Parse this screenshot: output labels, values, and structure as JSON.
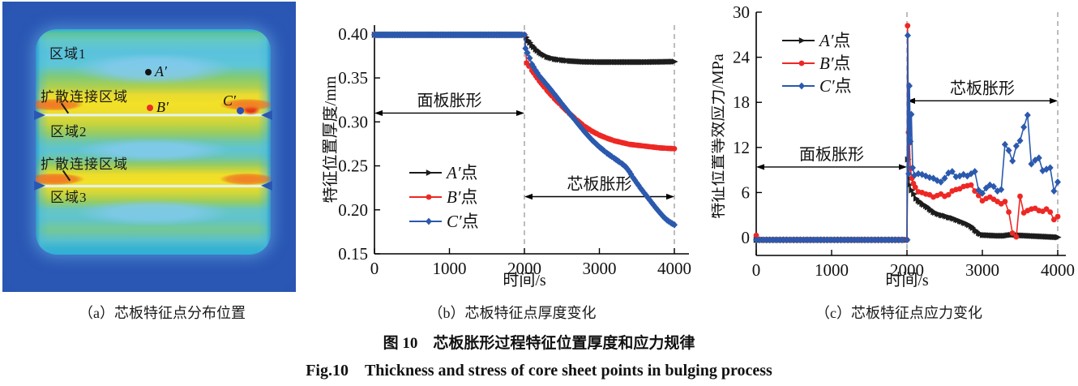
{
  "figure": {
    "caption_cn": "图 10　芯板胀形过程特征位置厚度和应力规律",
    "caption_en": "Fig.10　Thickness and stress of core sheet points in bulging process",
    "colors": {
      "black": "#1c1c1c",
      "red": "#ed2824",
      "blue": "#2b59ae",
      "dash": "#999999"
    }
  },
  "panel_a": {
    "caption": "（a）芯板特征点分布位置",
    "labels": {
      "region1": "区域1",
      "diffusion1": "扩散连接区域",
      "region2": "区域2",
      "diffusion2": "扩散连接区域",
      "region3": "区域3",
      "point_a": "A′",
      "point_b": "B′",
      "point_c": "C′"
    },
    "point_colors": {
      "a": "#141414",
      "b": "#e83028",
      "c": "#2b50b0"
    }
  },
  "chart_data": [
    {
      "name": "thickness-chart",
      "type": "line",
      "title": "（b）芯板特征点厚度变化",
      "xlabel": "时间/s",
      "ylabel": "特征位置厚度/mm",
      "xlim": [
        0,
        4200
      ],
      "ylim": [
        0.15,
        0.41
      ],
      "xticks": [
        0,
        1000,
        2000,
        3000,
        4000
      ],
      "yticks": [
        0.15,
        0.2,
        0.25,
        0.3,
        0.35,
        0.4
      ],
      "ytick_decimals": 2,
      "grid": false,
      "legend_position": "inside-lower-left",
      "dashed_x": [
        2000,
        4000
      ],
      "annotations": [
        {
          "text": "面板胀形",
          "x1": 0,
          "x2": 2000,
          "y": 0.31
        },
        {
          "text": "芯板胀形",
          "x1": 2000,
          "x2": 4000,
          "y": 0.215
        }
      ],
      "series": [
        {
          "name": "A′点",
          "color": "#1c1c1c",
          "marker": "triangle",
          "points": [
            [
              0,
              0.399
            ],
            [
              2000,
              0.399
            ],
            [
              2050,
              0.3925
            ],
            [
              2100,
              0.387
            ],
            [
              2150,
              0.3825
            ],
            [
              2200,
              0.379
            ],
            [
              2300,
              0.374
            ],
            [
              2400,
              0.3715
            ],
            [
              2500,
              0.3703
            ],
            [
              2600,
              0.3693
            ],
            [
              2800,
              0.3683
            ],
            [
              3000,
              0.368
            ],
            [
              3200,
              0.368
            ],
            [
              3400,
              0.368
            ],
            [
              3600,
              0.368
            ],
            [
              3800,
              0.3682
            ],
            [
              4000,
              0.3685
            ]
          ]
        },
        {
          "name": "B′点",
          "color": "#ed2824",
          "marker": "circle",
          "points": [
            [
              0,
              0.399
            ],
            [
              2000,
              0.399
            ],
            [
              2030,
              0.367
            ],
            [
              2060,
              0.3635
            ],
            [
              2100,
              0.3585
            ],
            [
              2150,
              0.3525
            ],
            [
              2200,
              0.3465
            ],
            [
              2300,
              0.336
            ],
            [
              2400,
              0.3265
            ],
            [
              2500,
              0.318
            ],
            [
              2600,
              0.3095
            ],
            [
              2700,
              0.302
            ],
            [
              2800,
              0.295
            ],
            [
              2900,
              0.2895
            ],
            [
              3000,
              0.285
            ],
            [
              3100,
              0.2815
            ],
            [
              3200,
              0.2785
            ],
            [
              3300,
              0.2765
            ],
            [
              3400,
              0.2745
            ],
            [
              3500,
              0.2735
            ],
            [
              3600,
              0.2725
            ],
            [
              3700,
              0.2715
            ],
            [
              3800,
              0.2705
            ],
            [
              3900,
              0.27
            ],
            [
              4000,
              0.2695
            ]
          ]
        },
        {
          "name": "C′点",
          "color": "#2b59ae",
          "marker": "diamond",
          "points": [
            [
              0,
              0.399
            ],
            [
              2000,
              0.399
            ],
            [
              2015,
              0.3835
            ],
            [
              2040,
              0.3785
            ],
            [
              2070,
              0.3725
            ],
            [
              2100,
              0.3655
            ],
            [
              2150,
              0.3585
            ],
            [
              2200,
              0.352
            ],
            [
              2300,
              0.342
            ],
            [
              2400,
              0.3315
            ],
            [
              2500,
              0.3205
            ],
            [
              2600,
              0.31
            ],
            [
              2700,
              0.2995
            ],
            [
              2800,
              0.289
            ],
            [
              2900,
              0.2795
            ],
            [
              2950,
              0.2755
            ],
            [
              3000,
              0.2715
            ],
            [
              3100,
              0.2645
            ],
            [
              3200,
              0.2585
            ],
            [
              3300,
              0.2525
            ],
            [
              3350,
              0.249
            ],
            [
              3400,
              0.2435
            ],
            [
              3450,
              0.2365
            ],
            [
              3500,
              0.2305
            ],
            [
              3550,
              0.2245
            ],
            [
              3600,
              0.219
            ],
            [
              3650,
              0.2135
            ],
            [
              3700,
              0.208
            ],
            [
              3750,
              0.2025
            ],
            [
              3800,
              0.1975
            ],
            [
              3850,
              0.1925
            ],
            [
              3900,
              0.1885
            ],
            [
              3950,
              0.1855
            ],
            [
              4000,
              0.183
            ]
          ]
        }
      ]
    },
    {
      "name": "stress-chart",
      "type": "line",
      "title": "（c）芯板特征点应力变化",
      "xlabel": "时间/s",
      "ylabel": "特征位置等效应力/MPa",
      "xlim": [
        0,
        4100
      ],
      "ylim": [
        -2.37,
        30
      ],
      "xticks": [
        0,
        1000,
        2000,
        3000,
        4000
      ],
      "yticks": [
        0,
        6,
        12,
        18,
        24,
        30
      ],
      "ytick_decimals": 0,
      "grid": false,
      "legend_position": "inside-upper-left",
      "dashed_x": [
        2000,
        4000
      ],
      "annotations": [
        {
          "text": "面板胀形",
          "x1": 0,
          "x2": 2000,
          "y": 9.4
        },
        {
          "text": "芯板胀形",
          "x1": 2000,
          "x2": 4000,
          "y": 18.2
        }
      ],
      "series": [
        {
          "name": "A′点",
          "color": "#1c1c1c",
          "marker": "triangle",
          "points": [
            [
              0,
              -0.3
            ],
            [
              2000,
              -0.3
            ],
            [
              2010,
              10.4
            ],
            [
              2030,
              7.0
            ],
            [
              2060,
              6.3
            ],
            [
              2090,
              5.8
            ],
            [
              2120,
              5.2
            ],
            [
              2150,
              4.9
            ],
            [
              2200,
              4.5
            ],
            [
              2250,
              4.2
            ],
            [
              2300,
              3.8
            ],
            [
              2350,
              3.4
            ],
            [
              2400,
              3.2
            ],
            [
              2450,
              3.0
            ],
            [
              2500,
              2.9
            ],
            [
              2550,
              2.7
            ],
            [
              2600,
              2.6
            ],
            [
              2650,
              2.4
            ],
            [
              2700,
              2.2
            ],
            [
              2750,
              2.0
            ],
            [
              2800,
              1.8
            ],
            [
              2850,
              1.5
            ],
            [
              2900,
              1.0
            ],
            [
              2950,
              0.6
            ],
            [
              3000,
              0.35
            ],
            [
              3100,
              0.3
            ],
            [
              3200,
              0.25
            ],
            [
              3300,
              0.25
            ],
            [
              3400,
              0.4
            ],
            [
              3500,
              0.3
            ],
            [
              3600,
              0.25
            ],
            [
              3700,
              0.2
            ],
            [
              3800,
              0.15
            ],
            [
              3900,
              0.1
            ],
            [
              4000,
              0.05
            ]
          ]
        },
        {
          "name": "B′点",
          "color": "#ed2824",
          "marker": "circle",
          "points": [
            [
              0,
              0.3
            ],
            [
              50,
              -0.3
            ],
            [
              2000,
              -0.3
            ],
            [
              2008,
              28.2
            ],
            [
              2020,
              14.0
            ],
            [
              2032,
              12.6
            ],
            [
              2045,
              9.2
            ],
            [
              2065,
              7.9
            ],
            [
              2085,
              7.2
            ],
            [
              2110,
              6.7
            ],
            [
              2150,
              6.1
            ],
            [
              2200,
              6.0
            ],
            [
              2250,
              5.8
            ],
            [
              2300,
              5.7
            ],
            [
              2350,
              5.4
            ],
            [
              2400,
              5.6
            ],
            [
              2450,
              5.8
            ],
            [
              2500,
              5.5
            ],
            [
              2550,
              5.7
            ],
            [
              2600,
              6.2
            ],
            [
              2650,
              6.4
            ],
            [
              2700,
              6.5
            ],
            [
              2750,
              6.8
            ],
            [
              2800,
              6.9
            ],
            [
              2850,
              7.0
            ],
            [
              2900,
              6.2
            ],
            [
              2950,
              5.6
            ],
            [
              3000,
              4.9
            ],
            [
              3050,
              5.2
            ],
            [
              3100,
              5.4
            ],
            [
              3150,
              5.1
            ],
            [
              3200,
              4.8
            ],
            [
              3250,
              4.5
            ],
            [
              3300,
              4.8
            ],
            [
              3350,
              3.4
            ],
            [
              3400,
              0.6
            ],
            [
              3450,
              0.1
            ],
            [
              3500,
              5.5
            ],
            [
              3550,
              3.3
            ],
            [
              3600,
              3.6
            ],
            [
              3650,
              3.8
            ],
            [
              3700,
              3.9
            ],
            [
              3750,
              3.6
            ],
            [
              3800,
              3.5
            ],
            [
              3850,
              3.8
            ],
            [
              3900,
              3.4
            ],
            [
              3950,
              2.4
            ],
            [
              4000,
              2.8
            ]
          ]
        },
        {
          "name": "C′点",
          "color": "#2b59ae",
          "marker": "diamond",
          "points": [
            [
              0,
              -0.3
            ],
            [
              2000,
              -0.3
            ],
            [
              2010,
              26.9
            ],
            [
              2022,
              8.5
            ],
            [
              2032,
              20.2
            ],
            [
              2045,
              12.8
            ],
            [
              2058,
              16.4
            ],
            [
              2075,
              9.3
            ],
            [
              2100,
              8.3
            ],
            [
              2150,
              8.5
            ],
            [
              2200,
              8.4
            ],
            [
              2250,
              8.2
            ],
            [
              2300,
              8.0
            ],
            [
              2350,
              7.9
            ],
            [
              2400,
              7.6
            ],
            [
              2450,
              7.4
            ],
            [
              2500,
              7.9
            ],
            [
              2550,
              8.6
            ],
            [
              2600,
              8.8
            ],
            [
              2650,
              8.1
            ],
            [
              2700,
              8.2
            ],
            [
              2750,
              8.4
            ],
            [
              2800,
              8.2
            ],
            [
              2850,
              8.5
            ],
            [
              2900,
              8.8
            ],
            [
              2950,
              6.3
            ],
            [
              3000,
              5.9
            ],
            [
              3050,
              6.6
            ],
            [
              3100,
              7.0
            ],
            [
              3150,
              6.8
            ],
            [
              3200,
              6.2
            ],
            [
              3250,
              6.4
            ],
            [
              3300,
              12.4
            ],
            [
              3350,
              11.6
            ],
            [
              3400,
              10.2
            ],
            [
              3450,
              12.2
            ],
            [
              3500,
              12.9
            ],
            [
              3550,
              14.7
            ],
            [
              3600,
              16.3
            ],
            [
              3650,
              9.8
            ],
            [
              3700,
              10.3
            ],
            [
              3750,
              10.6
            ],
            [
              3800,
              8.9
            ],
            [
              3850,
              9.1
            ],
            [
              3900,
              9.3
            ],
            [
              3950,
              6.2
            ],
            [
              4000,
              7.4
            ]
          ]
        }
      ]
    }
  ]
}
